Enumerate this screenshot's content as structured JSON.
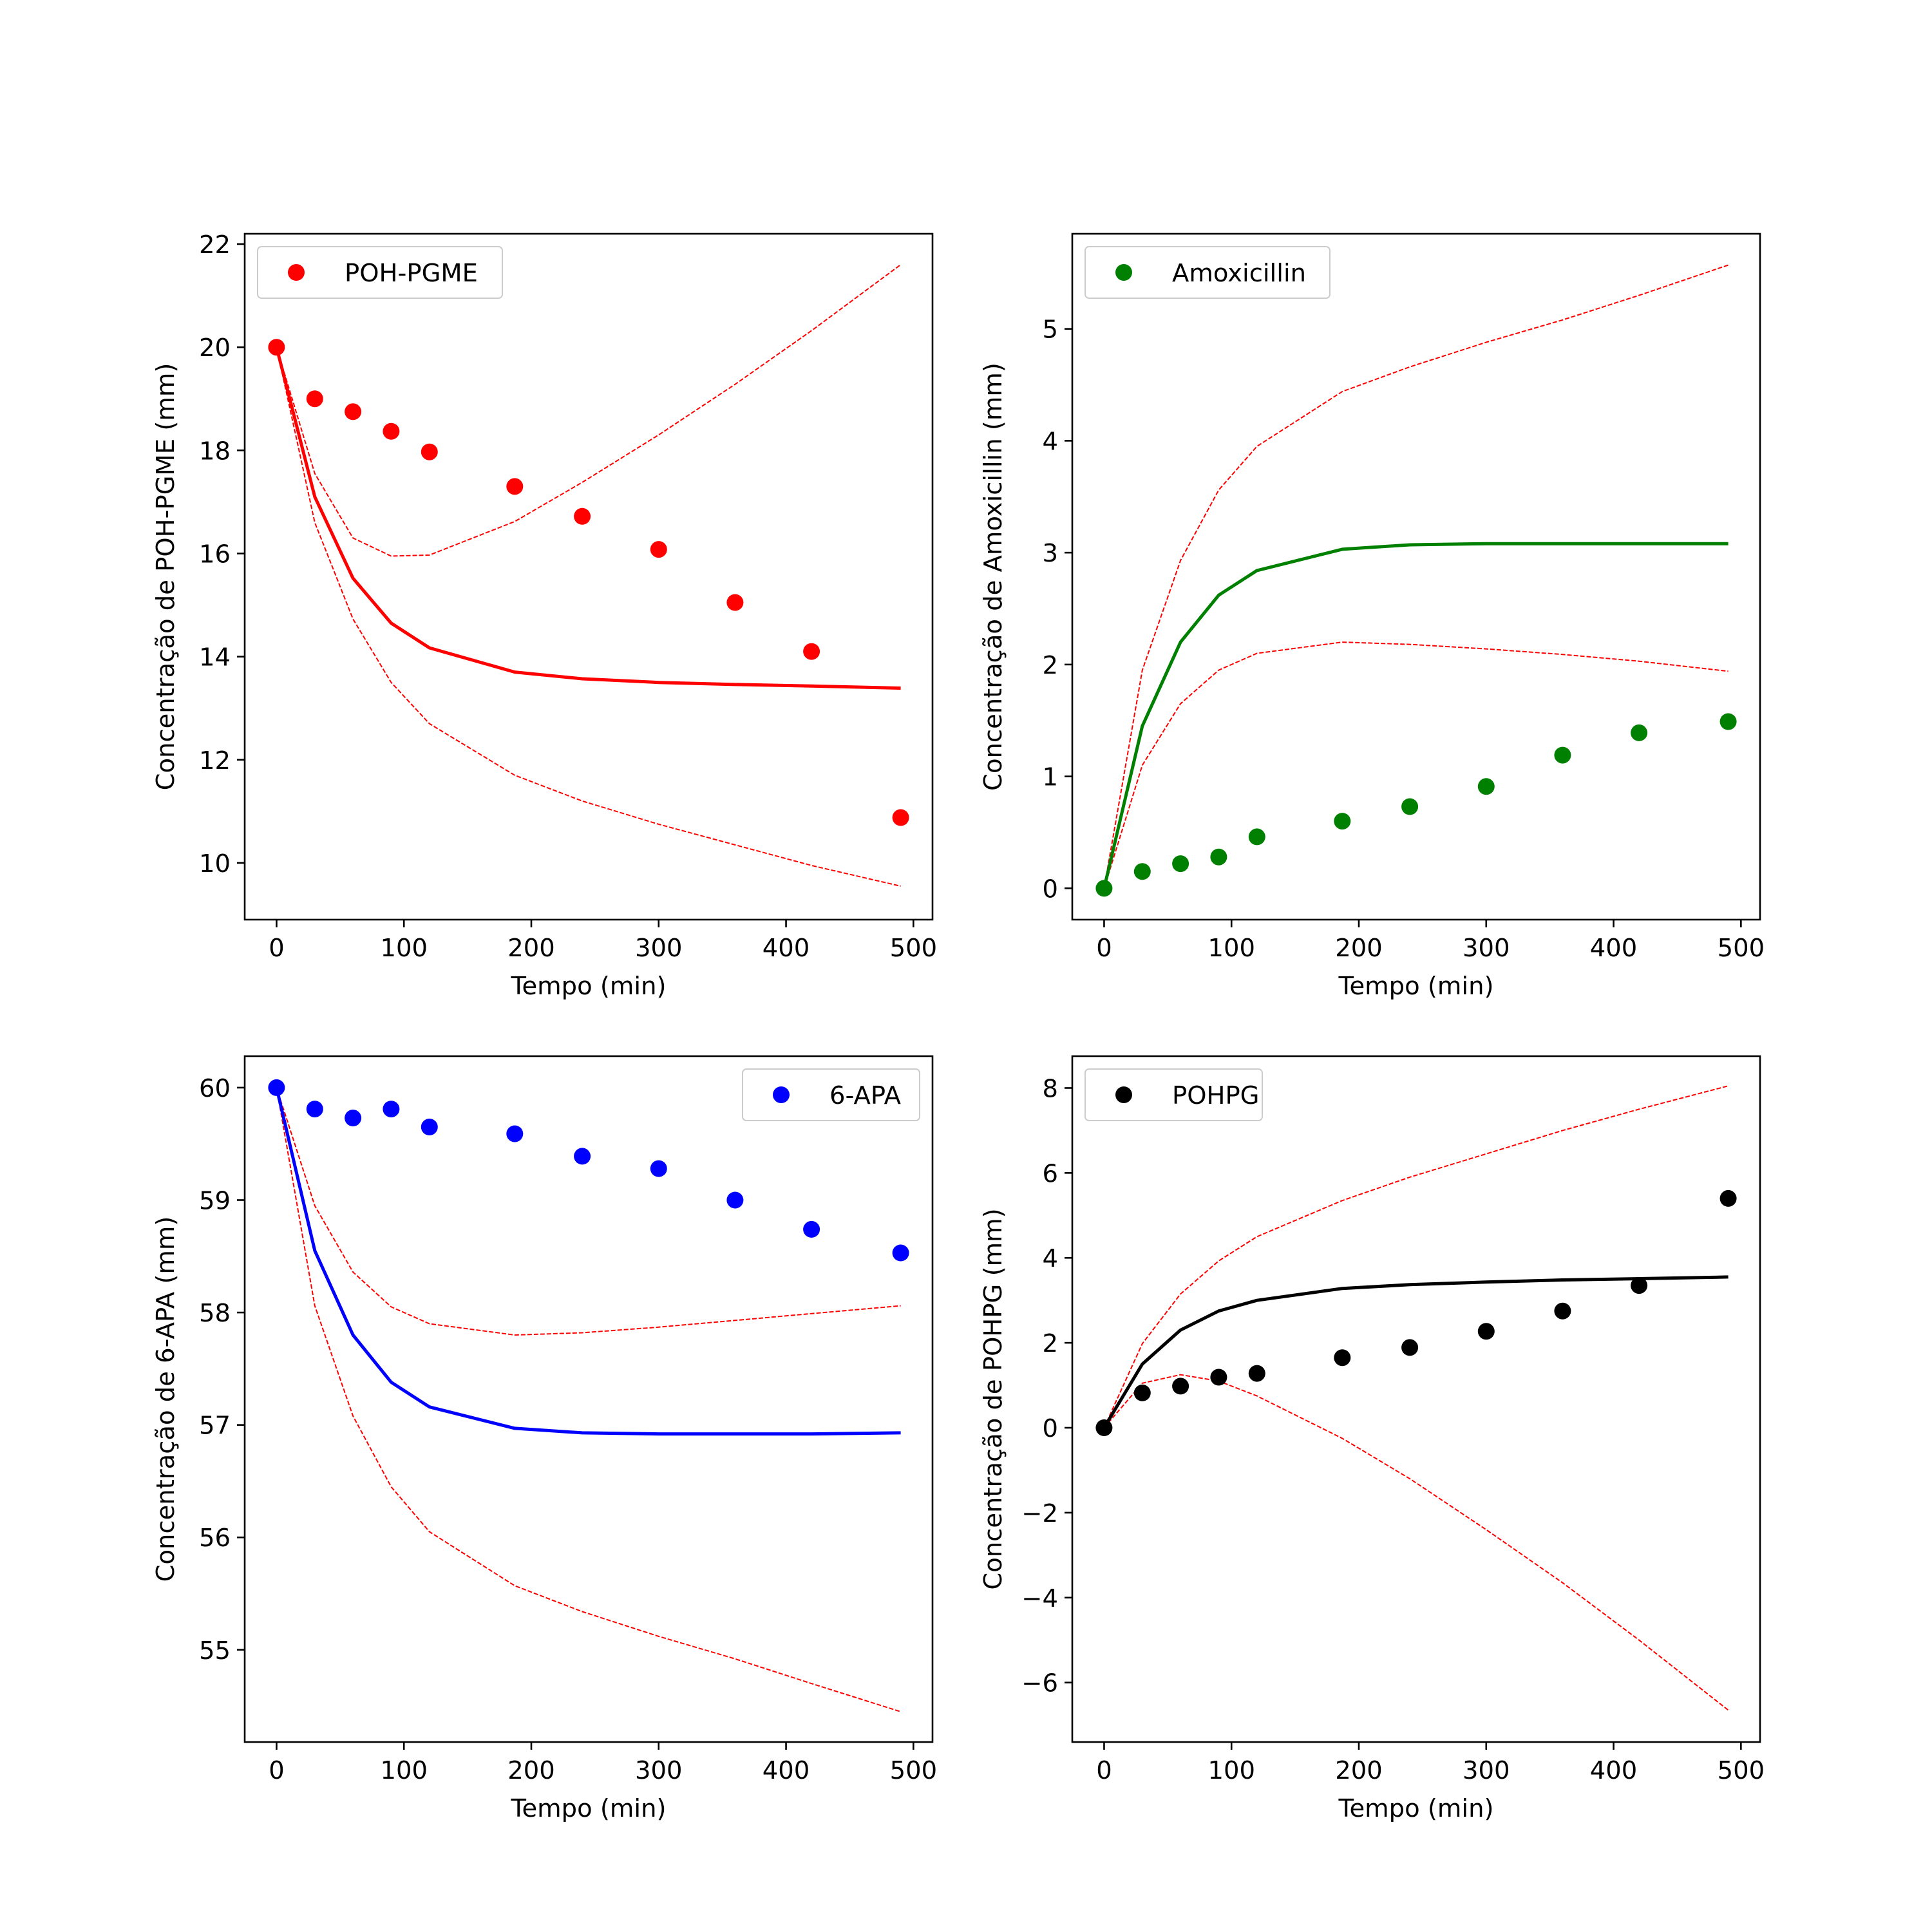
{
  "colors": {
    "band": "#ff0000",
    "text": "#000000",
    "background": "#ffffff"
  },
  "chart_data": [
    {
      "type": "scatter",
      "xlabel": "Tempo (min)",
      "ylabel": "Concentração de POH-PGME (mm)",
      "xlim": [
        -25,
        515
      ],
      "ylim": [
        8.9,
        22.2
      ],
      "xticks": [
        0,
        100,
        200,
        300,
        400,
        500
      ],
      "yticks": [
        10,
        12,
        14,
        16,
        18,
        20,
        22
      ],
      "color": "#ff0000",
      "legend": {
        "label": "POH-PGME",
        "position": "upper left"
      },
      "scatter": {
        "x": [
          0,
          30,
          60,
          90,
          120,
          187,
          240,
          300,
          360,
          420,
          490
        ],
        "y": [
          20.0,
          19.0,
          18.75,
          18.37,
          17.97,
          17.3,
          16.72,
          16.08,
          15.05,
          14.1,
          10.88
        ]
      },
      "fit": {
        "x": [
          0,
          30,
          60,
          90,
          120,
          187,
          240,
          300,
          360,
          420,
          490
        ],
        "y": [
          20.0,
          17.1,
          15.52,
          14.65,
          14.17,
          13.7,
          13.57,
          13.5,
          13.46,
          13.43,
          13.39
        ]
      },
      "upper": {
        "x": [
          0,
          30,
          60,
          90,
          120,
          187,
          240,
          300,
          360,
          420,
          490
        ],
        "y": [
          20.0,
          17.55,
          16.3,
          15.95,
          15.97,
          16.62,
          17.38,
          18.3,
          19.28,
          20.32,
          21.6
        ]
      },
      "lower": {
        "x": [
          0,
          30,
          60,
          90,
          120,
          187,
          240,
          300,
          360,
          420,
          490
        ],
        "y": [
          20.0,
          16.6,
          14.73,
          13.5,
          12.7,
          11.7,
          11.2,
          10.75,
          10.35,
          9.95,
          9.55
        ]
      }
    },
    {
      "type": "scatter",
      "xlabel": "Tempo (min)",
      "ylabel": "Concentração de Amoxicillin (mm)",
      "xlim": [
        -25,
        515
      ],
      "ylim": [
        -0.28,
        5.85
      ],
      "xticks": [
        0,
        100,
        200,
        300,
        400,
        500
      ],
      "yticks": [
        0,
        1,
        2,
        3,
        4,
        5
      ],
      "color": "#008000",
      "legend": {
        "label": "Amoxicillin",
        "position": "upper left"
      },
      "scatter": {
        "x": [
          0,
          30,
          60,
          90,
          120,
          187,
          240,
          300,
          360,
          420,
          490
        ],
        "y": [
          0.0,
          0.15,
          0.22,
          0.28,
          0.46,
          0.6,
          0.73,
          0.91,
          1.19,
          1.39,
          1.49
        ]
      },
      "fit": {
        "x": [
          0,
          30,
          60,
          90,
          120,
          187,
          240,
          300,
          360,
          420,
          490
        ],
        "y": [
          0.0,
          1.45,
          2.2,
          2.62,
          2.84,
          3.03,
          3.07,
          3.08,
          3.08,
          3.08,
          3.08
        ]
      },
      "upper": {
        "x": [
          0,
          30,
          60,
          90,
          120,
          187,
          240,
          300,
          360,
          420,
          490
        ],
        "y": [
          0.0,
          1.95,
          2.93,
          3.56,
          3.95,
          4.44,
          4.66,
          4.88,
          5.08,
          5.3,
          5.57
        ]
      },
      "lower": {
        "x": [
          0,
          30,
          60,
          90,
          120,
          187,
          240,
          300,
          360,
          420,
          490
        ],
        "y": [
          0.0,
          1.1,
          1.65,
          1.95,
          2.1,
          2.2,
          2.18,
          2.14,
          2.09,
          2.03,
          1.94
        ]
      }
    },
    {
      "type": "scatter",
      "xlabel": "Tempo (min)",
      "ylabel": "Concentração de 6-APA (mm)",
      "xlim": [
        -25,
        515
      ],
      "ylim": [
        54.18,
        60.28
      ],
      "xticks": [
        0,
        100,
        200,
        300,
        400,
        500
      ],
      "yticks": [
        55,
        56,
        57,
        58,
        59,
        60
      ],
      "color": "#0000ff",
      "legend": {
        "label": "6-APA",
        "position": "upper right"
      },
      "scatter": {
        "x": [
          0,
          30,
          60,
          90,
          120,
          187,
          240,
          300,
          360,
          420,
          490
        ],
        "y": [
          60.0,
          59.81,
          59.73,
          59.81,
          59.65,
          59.59,
          59.39,
          59.28,
          59.0,
          58.74,
          58.53
        ]
      },
      "fit": {
        "x": [
          0,
          30,
          60,
          90,
          120,
          187,
          240,
          300,
          360,
          420,
          490
        ],
        "y": [
          60.0,
          58.55,
          57.8,
          57.38,
          57.16,
          56.97,
          56.93,
          56.92,
          56.92,
          56.92,
          56.93
        ]
      },
      "upper": {
        "x": [
          0,
          30,
          60,
          90,
          120,
          187,
          240,
          300,
          360,
          420,
          490
        ],
        "y": [
          60.0,
          58.95,
          58.36,
          58.05,
          57.9,
          57.8,
          57.82,
          57.87,
          57.93,
          57.99,
          58.06
        ]
      },
      "lower": {
        "x": [
          0,
          30,
          60,
          90,
          120,
          187,
          240,
          300,
          360,
          420,
          490
        ],
        "y": [
          60.0,
          58.06,
          57.08,
          56.45,
          56.05,
          55.57,
          55.34,
          55.12,
          54.92,
          54.7,
          54.45
        ]
      }
    },
    {
      "type": "scatter",
      "xlabel": "Tempo (min)",
      "ylabel": "Concentração de POHPG (mm)",
      "xlim": [
        -25,
        515
      ],
      "ylim": [
        -7.4,
        8.75
      ],
      "xticks": [
        0,
        100,
        200,
        300,
        400,
        500
      ],
      "yticks": [
        -6,
        -4,
        -2,
        0,
        2,
        4,
        6,
        8
      ],
      "color": "#000000",
      "legend": {
        "label": "POHPG",
        "position": "upper left"
      },
      "scatter": {
        "x": [
          0,
          30,
          60,
          90,
          120,
          187,
          240,
          300,
          360,
          420,
          490
        ],
        "y": [
          0.0,
          0.82,
          0.98,
          1.19,
          1.28,
          1.65,
          1.89,
          2.27,
          2.75,
          3.35,
          5.4
        ]
      },
      "fit": {
        "x": [
          0,
          30,
          60,
          90,
          120,
          187,
          240,
          300,
          360,
          420,
          490
        ],
        "y": [
          0.0,
          1.5,
          2.3,
          2.75,
          3.0,
          3.28,
          3.37,
          3.43,
          3.48,
          3.51,
          3.55
        ]
      },
      "upper": {
        "x": [
          0,
          30,
          60,
          90,
          120,
          187,
          240,
          300,
          360,
          420,
          490
        ],
        "y": [
          0.0,
          1.98,
          3.15,
          3.93,
          4.5,
          5.35,
          5.9,
          6.45,
          7.0,
          7.5,
          8.05
        ]
      },
      "lower": {
        "x": [
          0,
          30,
          60,
          90,
          120,
          187,
          240,
          300,
          360,
          420,
          490
        ],
        "y": [
          0.0,
          1.05,
          1.25,
          1.1,
          0.75,
          -0.25,
          -1.2,
          -2.4,
          -3.65,
          -5.0,
          -6.65
        ]
      }
    }
  ]
}
